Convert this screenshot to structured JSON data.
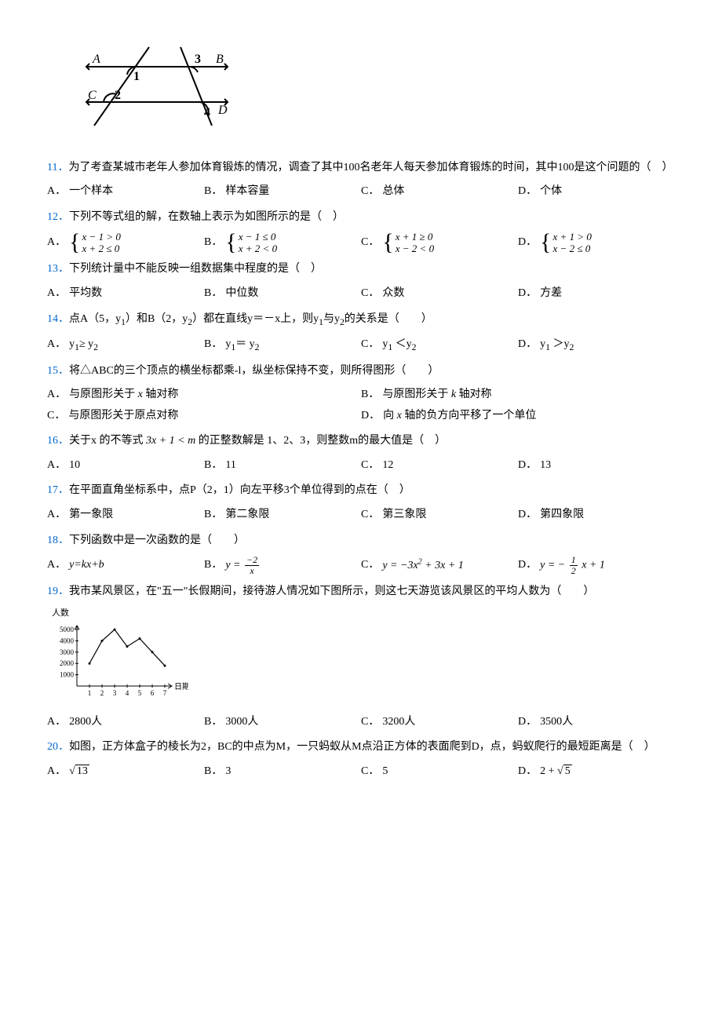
{
  "colors": {
    "link": "#0066cc",
    "text": "#000000",
    "background": "#ffffff"
  },
  "figure_top": {
    "labels": [
      "A",
      "B",
      "C",
      "D",
      "1",
      "2",
      "3",
      "4"
    ],
    "line_color": "#000000",
    "line_width": 2
  },
  "questions": [
    {
      "num": "11．",
      "text": "为了考查某城市老年人参加体育锻炼的情况，调查了其中100名老年人每天参加体育锻炼的时间，其中100是这个问题的（　）",
      "layout": "opt4",
      "opts": [
        {
          "label": "A．",
          "text": "一个样本"
        },
        {
          "label": "B．",
          "text": "样本容量"
        },
        {
          "label": "C．",
          "text": "总体"
        },
        {
          "label": "D．",
          "text": "个体"
        }
      ]
    },
    {
      "num": "12．",
      "text": "下列不等式组的解，在数轴上表示为如图所示的是（　）",
      "layout": "opt4",
      "opts_type": "system",
      "opts": [
        {
          "label": "A．",
          "line1": "x − 1 > 0",
          "line2": "x + 2 ≤ 0"
        },
        {
          "label": "B．",
          "line1": "x − 1 ≤ 0",
          "line2": "x + 2 < 0"
        },
        {
          "label": "C．",
          "line1": "x + 1 ≥ 0",
          "line2": "x − 2 < 0"
        },
        {
          "label": "D．",
          "line1": "x + 1 > 0",
          "line2": "x − 2 ≤ 0"
        }
      ]
    },
    {
      "num": "13．",
      "text": "下列统计量中不能反映一组数据集中程度的是（　）",
      "layout": "opt4",
      "opts": [
        {
          "label": "A．",
          "text": "平均数"
        },
        {
          "label": "B．",
          "text": "中位数"
        },
        {
          "label": "C．",
          "text": "众数"
        },
        {
          "label": "D．",
          "text": "方差"
        }
      ]
    },
    {
      "num": "14．",
      "text_html": "点A（5，y<sub>1</sub>）和B（2，y<sub>2</sub>）都在直线y＝－x上，则y<sub>1</sub>与y<sub>2</sub>的关系是（　　）",
      "layout": "opt4",
      "opts_type": "html",
      "opts": [
        {
          "label": "A．",
          "html": "y<sub>1</sub>≥ y<sub>2</sub>"
        },
        {
          "label": "B．",
          "html": "y<sub>1</sub>＝ y<sub>2</sub>"
        },
        {
          "label": "C．",
          "html": "y<sub>1</sub> ＜y<sub>2</sub>"
        },
        {
          "label": "D．",
          "html": "y<sub>1</sub> ＞y<sub>2</sub>"
        }
      ]
    },
    {
      "num": "15．",
      "text": "将△ABC的三个顶点的横坐标都乘-l，纵坐标保持不变，则所得图形（　　）",
      "layout": "opt2",
      "opts_type": "html",
      "opts": [
        {
          "label": "A．",
          "html": "与原图形关于 <span class='math'>x</span> 轴对称"
        },
        {
          "label": "B．",
          "html": "与原图形关于 <span class='math'>k</span> 轴对称"
        },
        {
          "label": "C．",
          "html": "与原图形关于原点对称"
        },
        {
          "label": "D．",
          "html": "向 <span class='math'>x</span> 轴的负方向平移了一个单位"
        }
      ]
    },
    {
      "num": "16．",
      "text_html": "关于x 的不等式 <span class='math'>3x + 1 &lt; m</span> 的正整数解是 1、2、3，则整数m的最大值是（　）",
      "layout": "opt4",
      "opts": [
        {
          "label": "A．",
          "text": "10"
        },
        {
          "label": "B．",
          "text": "11"
        },
        {
          "label": "C．",
          "text": "12"
        },
        {
          "label": "D．",
          "text": "13"
        }
      ]
    },
    {
      "num": "17．",
      "text": "在平面直角坐标系中，点P（2，1）向左平移3个单位得到的点在（　）",
      "layout": "opt4",
      "opts": [
        {
          "label": "A．",
          "text": "第一象限"
        },
        {
          "label": "B．",
          "text": "第二象限"
        },
        {
          "label": "C．",
          "text": "第三象限"
        },
        {
          "label": "D．",
          "text": "第四象限"
        }
      ]
    },
    {
      "num": "18．",
      "text": "下列函数中是一次函数的是（　　）",
      "layout": "opt4",
      "opts_type": "func",
      "opts": [
        {
          "label": "A．",
          "func": "y=kx+b"
        },
        {
          "label": "B．",
          "func_frac": {
            "lhs": "y =",
            "num": "−2",
            "den": "x"
          }
        },
        {
          "label": "C．",
          "func_html": "<span class='math'>y = −3x<span class='sup'>2</span> + 3x + 1</span>"
        },
        {
          "label": "D．",
          "func_frac": {
            "lhs": "y = −",
            "num": "1",
            "den": "2",
            "tail": "x + 1"
          }
        }
      ]
    },
    {
      "num": "19．",
      "text": "我市某风景区，在\"五一\"长假期间，接待游人情况如下图所示，则这七天游览该风景区的平均人数为（　　）",
      "has_chart": true,
      "chart": {
        "type": "line",
        "y_label": "人数",
        "x_label": "日期",
        "x_ticks": [
          1,
          2,
          3,
          4,
          5,
          6,
          7
        ],
        "y_ticks": [
          1000,
          2000,
          3000,
          4000,
          5000
        ],
        "values": [
          2000,
          4000,
          5000,
          3500,
          4200,
          3000,
          1800
        ],
        "line_color": "#000000",
        "axis_color": "#000000",
        "background_color": "#ffffff",
        "label_fontsize": 10,
        "width": 180,
        "height": 100
      },
      "layout": "opt4",
      "opts": [
        {
          "label": "A．",
          "text": "2800人"
        },
        {
          "label": "B．",
          "text": "3000人"
        },
        {
          "label": "C．",
          "text": "3200人"
        },
        {
          "label": "D．",
          "text": "3500人"
        }
      ]
    },
    {
      "num": "20．",
      "text": "如图，正方体盒子的棱长为2，BC的中点为M，一只蚂蚁从M点沿正方体的表面爬到D，点，蚂蚁爬行的最短距离是（　）",
      "layout": "opt4",
      "opts_type": "sqrt",
      "opts": [
        {
          "label": "A．",
          "sqrt": "13"
        },
        {
          "label": "B．",
          "text": "3"
        },
        {
          "label": "C．",
          "text": "5"
        },
        {
          "label": "D．",
          "sqrt_pre": "2 + ",
          "sqrt": "5"
        }
      ]
    }
  ]
}
